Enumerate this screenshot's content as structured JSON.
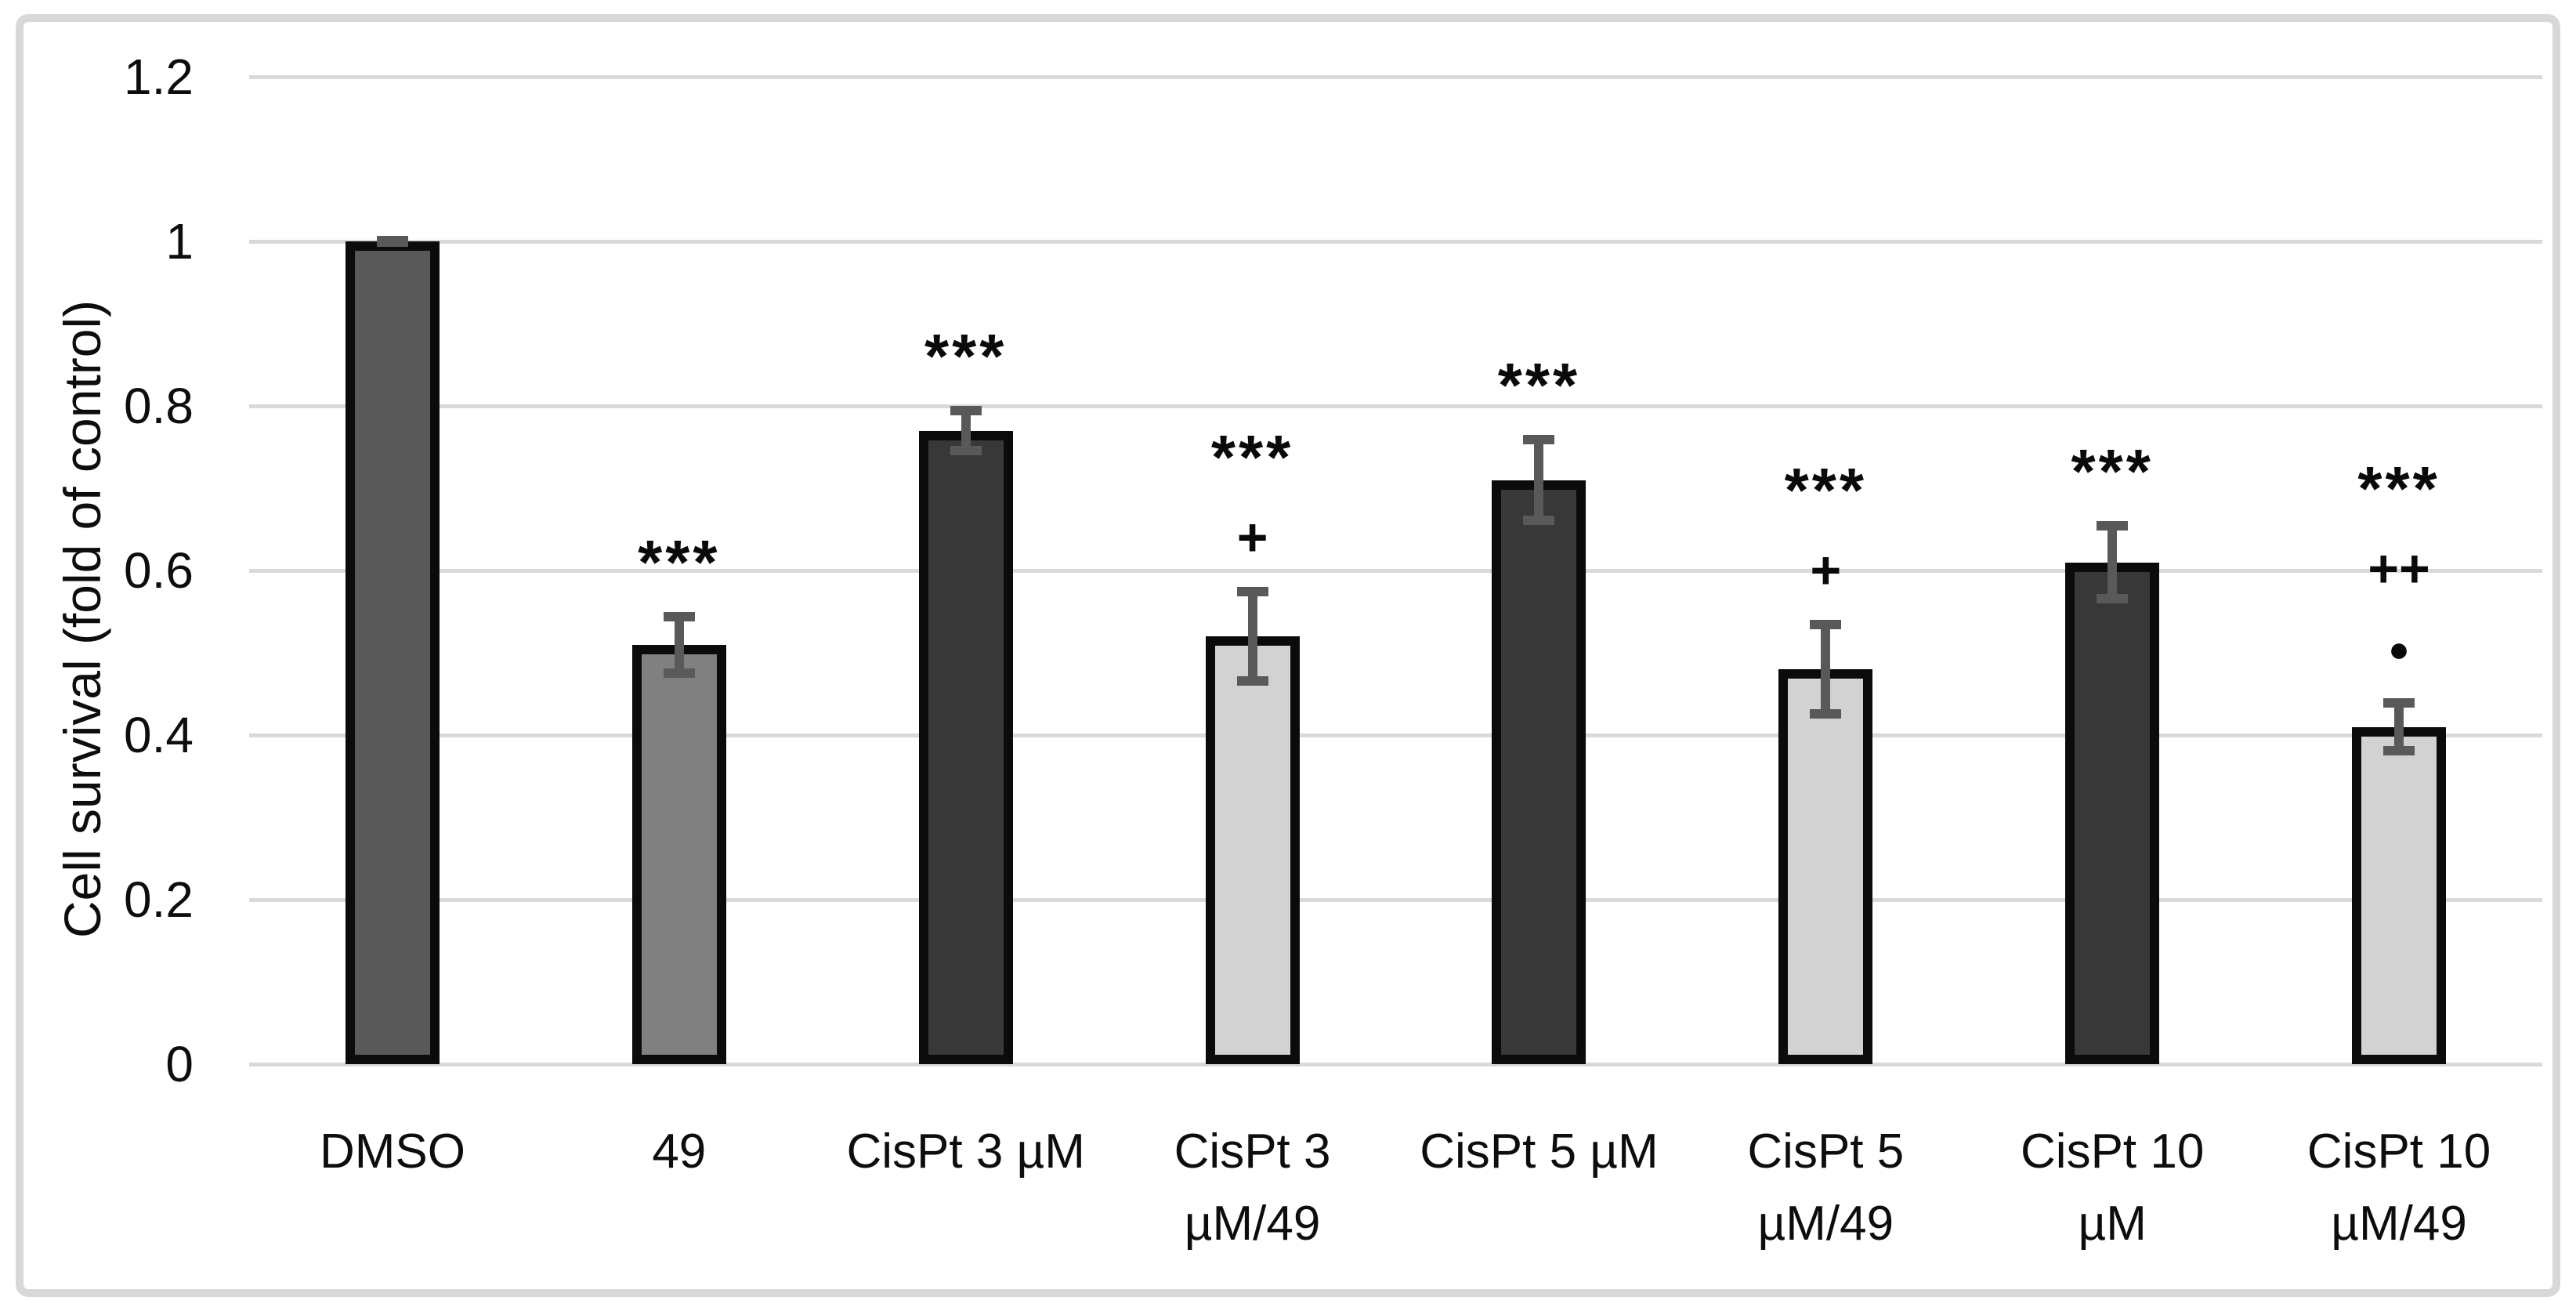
{
  "figure": {
    "background": "#ffffff",
    "border_color": "#d8d8d8"
  },
  "chart_data": {
    "type": "bar",
    "title": "",
    "xlabel": "",
    "ylabel": "Cell survival (fold of control)",
    "ylim": [
      0,
      1.2
    ],
    "grid": true,
    "legend": false,
    "yticks": [
      {
        "value": 1.2,
        "label": "1.2"
      },
      {
        "value": 1.0,
        "label": "1"
      },
      {
        "value": 0.8,
        "label": "0.8"
      },
      {
        "value": 0.6,
        "label": "0.6"
      },
      {
        "value": 0.4,
        "label": "0.4"
      },
      {
        "value": 0.2,
        "label": "0.2"
      },
      {
        "value": 0.0,
        "label": "0"
      }
    ],
    "categories": [
      {
        "lines": [
          "DMSO"
        ]
      },
      {
        "lines": [
          "49"
        ]
      },
      {
        "lines": [
          "CisPt 3 µM"
        ]
      },
      {
        "lines": [
          "CisPt 3",
          "µM/49"
        ]
      },
      {
        "lines": [
          "CisPt 5 µM"
        ]
      },
      {
        "lines": [
          "CisPt 5",
          "µM/49"
        ]
      },
      {
        "lines": [
          "CisPt 10",
          "µM"
        ]
      },
      {
        "lines": [
          "CisPt 10",
          "µM/49"
        ]
      }
    ],
    "series": [
      {
        "name": "Cell survival (fold of control)",
        "values": [
          1.0,
          0.51,
          0.77,
          0.52,
          0.71,
          0.48,
          0.61,
          0.41
        ],
        "errors": [
          0.005,
          0.04,
          0.03,
          0.06,
          0.055,
          0.06,
          0.05,
          0.035
        ]
      }
    ],
    "annotations": [
      {
        "symbols": []
      },
      {
        "symbols": [
          "***"
        ]
      },
      {
        "symbols": [
          "***"
        ]
      },
      {
        "symbols": [
          "***",
          "+"
        ]
      },
      {
        "symbols": [
          "***"
        ]
      },
      {
        "symbols": [
          "***",
          "+"
        ]
      },
      {
        "symbols": [
          "***"
        ]
      },
      {
        "symbols": [
          "***",
          "++",
          "●"
        ]
      }
    ],
    "bar_fill_colors": [
      "#595959",
      "#808080",
      "#383838",
      "#d2d2d2",
      "#383838",
      "#d2d2d2",
      "#383838",
      "#d2d2d2"
    ],
    "bar_border_color": "#0b0b0b",
    "error_bar_color": "#595959",
    "gridline_color": "#d9d9d9"
  }
}
